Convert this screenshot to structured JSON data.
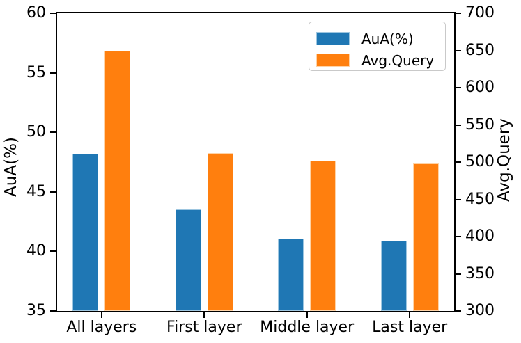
{
  "chart_data": {
    "type": "bar",
    "title": "",
    "categories": [
      "All layers",
      "First layer",
      "Middle layer",
      "Last layer"
    ],
    "series": [
      {
        "name": "AuA(%)",
        "axis": "left",
        "color": "#1f77b4",
        "edge_color": "#9dc6e0",
        "values": [
          48.2,
          43.5,
          41.1,
          40.9
        ]
      },
      {
        "name": "Avg.Query",
        "axis": "right",
        "color": "#ff7f0e",
        "edge_color": "#ffd3a6",
        "values": [
          650,
          512,
          502,
          498
        ]
      }
    ],
    "left_axis": {
      "label": "AuA(%)",
      "min": 35,
      "max": 60,
      "ticks": [
        35,
        40,
        45,
        50,
        55,
        60
      ]
    },
    "right_axis": {
      "label": "Avg.Query",
      "min": 300,
      "max": 700,
      "ticks": [
        300,
        350,
        400,
        450,
        500,
        550,
        600,
        650,
        700
      ]
    },
    "legend": {
      "position": "upper right",
      "entries": [
        "AuA(%)",
        "Avg.Query"
      ]
    },
    "grid": false,
    "colors": {
      "spine": "#000000",
      "text": "#000000",
      "legend_border": "#c9c9c9",
      "background": "#ffffff"
    }
  }
}
